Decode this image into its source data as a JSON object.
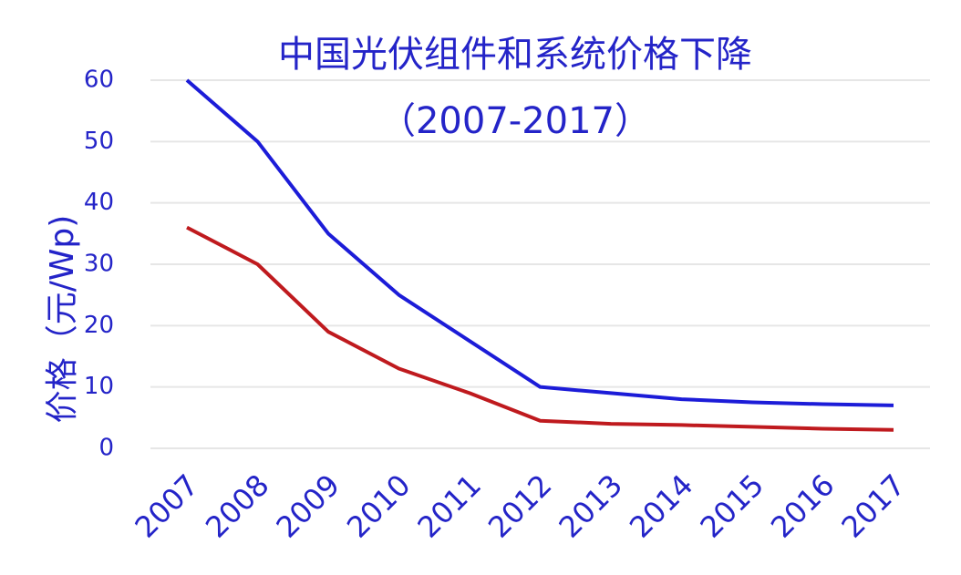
{
  "chart_data": {
    "type": "line",
    "title": "中国光伏组件和系统价格下降",
    "subtitle": "（2007-2017）",
    "y_label": "价格（元/Wp)",
    "categories": [
      "2007",
      "2008",
      "2009",
      "2010",
      "2011",
      "2012",
      "2013",
      "2014",
      "2015",
      "2016",
      "2017"
    ],
    "series": [
      {
        "color": "#1c1cd8",
        "values": [
          60,
          50,
          35,
          25,
          17.5,
          10,
          9,
          8,
          7.5,
          7.2,
          7
        ]
      },
      {
        "color": "#bf1a1e",
        "values": [
          36,
          30,
          19,
          13,
          9,
          4.5,
          4,
          3.8,
          3.5,
          3.2,
          3
        ]
      }
    ],
    "ylim": [
      0,
      60
    ],
    "yticks": [
      0,
      10,
      20,
      30,
      40,
      50,
      60
    ],
    "grid": true
  }
}
